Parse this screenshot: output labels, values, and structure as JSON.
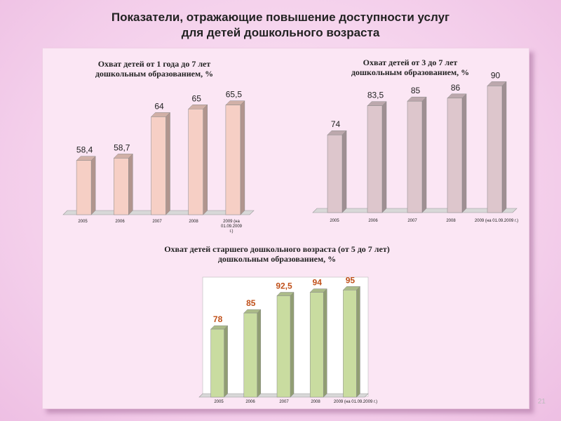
{
  "slide": {
    "title_line1": "Показатели, отражающие повышение доступности услуг",
    "title_line2": "для детей дошкольного возраста",
    "page_number": "21"
  },
  "chart_data": [
    {
      "type": "bar",
      "title_line1": "Охват детей от 1 года до 7 лет",
      "title_line2": "дошкольным образованием, %",
      "categories": [
        "2005",
        "2006",
        "2007",
        "2008",
        "2009 (на 01.09.2009 г.)"
      ],
      "category_lines": [
        [
          "2005"
        ],
        [
          "2006"
        ],
        [
          "2007"
        ],
        [
          "2008"
        ],
        [
          "2009 (на",
          "01.09.2009",
          "г.)"
        ]
      ],
      "values": [
        58.4,
        58.7,
        64,
        65,
        65.5
      ],
      "value_labels": [
        "58,4",
        "58,7",
        "64",
        "65",
        "65,5"
      ],
      "ylim": [
        52,
        67
      ],
      "bar_color": "#f6cfc5",
      "label_style": "normal"
    },
    {
      "type": "bar",
      "title_line1": "Охват детей от 3 до 7 лет",
      "title_line2": "дошкольным образованием, %",
      "categories": [
        "2005",
        "2006",
        "2007",
        "2008",
        "2009 (на 01.09.2009 г.)"
      ],
      "category_lines": [
        [
          "2005"
        ],
        [
          "2006"
        ],
        [
          "2007"
        ],
        [
          "2008"
        ],
        [
          "2009 (на 01.09.2009 г.)"
        ]
      ],
      "values": [
        74,
        83.5,
        85,
        86,
        90
      ],
      "value_labels": [
        "74",
        "83,5",
        "85",
        "86",
        "90"
      ],
      "ylim": [
        50,
        91
      ],
      "bar_color": "#ddc6cc",
      "label_style": "normal"
    },
    {
      "type": "bar",
      "title_line1": "Охват детей старшего дошкольного возраста (от 5 до 7 лет)",
      "title_line2": "дошкольным образованием, %",
      "categories": [
        "2005",
        "2006",
        "2007",
        "2008",
        "2009 (на 01.09.2009 г.)"
      ],
      "category_lines": [
        [
          "2005"
        ],
        [
          "2006"
        ],
        [
          "2007"
        ],
        [
          "2008"
        ],
        [
          "2009 (на 01.09.2009 г.)"
        ]
      ],
      "values": [
        78,
        85,
        92.5,
        94,
        95
      ],
      "value_labels": [
        "78",
        "85",
        "92,5",
        "94",
        "95"
      ],
      "ylim": [
        50,
        96
      ],
      "bar_color": "#c9dca0",
      "label_style": "orange"
    }
  ]
}
